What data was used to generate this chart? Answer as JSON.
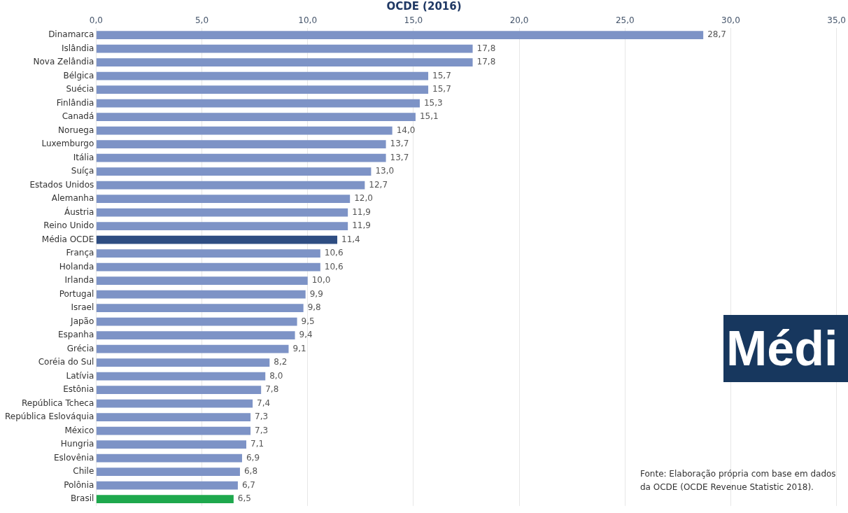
{
  "chart_data": {
    "type": "bar",
    "orientation": "horizontal",
    "title": "OCDE (2016)",
    "categories": [
      "Dinamarca",
      "Islândia",
      "Nova Zelândia",
      "Bélgica",
      "Suécia",
      "Finlândia",
      "Canadá",
      "Noruega",
      "Luxemburgo",
      "Itália",
      "Suíça",
      "Estados Unidos",
      "Alemanha",
      "Áustria",
      "Reino Unido",
      "Média OCDE",
      "França",
      "Holanda",
      "Irlanda",
      "Portugal",
      "Israel",
      "Japão",
      "Espanha",
      "Grécia",
      "Coréia do Sul",
      "Latívia",
      "Estônia",
      "República Tcheca",
      "República Eslováquia",
      "México",
      "Hungria",
      "Eslovênia",
      "Chile",
      "Polônia",
      "Brasil"
    ],
    "values": [
      28.7,
      17.8,
      17.8,
      15.7,
      15.7,
      15.3,
      15.1,
      14.0,
      13.7,
      13.7,
      13.0,
      12.7,
      12.0,
      11.9,
      11.9,
      11.4,
      10.6,
      10.6,
      10.0,
      9.9,
      9.8,
      9.5,
      9.4,
      9.1,
      8.2,
      8.0,
      7.8,
      7.4,
      7.3,
      7.3,
      7.1,
      6.9,
      6.8,
      6.7,
      6.5
    ],
    "colors": [
      "#7d93c6",
      "#7d93c6",
      "#7d93c6",
      "#7d93c6",
      "#7d93c6",
      "#7d93c6",
      "#7d93c6",
      "#7d93c6",
      "#7d93c6",
      "#7d93c6",
      "#7d93c6",
      "#7d93c6",
      "#7d93c6",
      "#7d93c6",
      "#7d93c6",
      "#2e4d82",
      "#7d93c6",
      "#7d93c6",
      "#7d93c6",
      "#7d93c6",
      "#7d93c6",
      "#7d93c6",
      "#7d93c6",
      "#7d93c6",
      "#7d93c6",
      "#7d93c6",
      "#7d93c6",
      "#7d93c6",
      "#7d93c6",
      "#7d93c6",
      "#7d93c6",
      "#7d93c6",
      "#7d93c6",
      "#7d93c6",
      "#1ea84d"
    ],
    "value_labels": [
      "28,7",
      "17,8",
      "17,8",
      "15,7",
      "15,7",
      "15,3",
      "15,1",
      "14,0",
      "13,7",
      "13,7",
      "13,0",
      "12,7",
      "12,0",
      "11,9",
      "11,9",
      "11,4",
      "10,6",
      "10,6",
      "10,0",
      "9,9",
      "9,8",
      "9,5",
      "9,4",
      "9,1",
      "8,2",
      "8,0",
      "7,8",
      "7,4",
      "7,3",
      "7,3",
      "7,1",
      "6,9",
      "6,8",
      "6,7",
      "6,5"
    ],
    "xlim": [
      0,
      35
    ],
    "xticks": [
      {
        "value": 0,
        "label": "0,0"
      },
      {
        "value": 5,
        "label": "5,0"
      },
      {
        "value": 10,
        "label": "10,0"
      },
      {
        "value": 15,
        "label": "15,0"
      },
      {
        "value": 20,
        "label": "20,0"
      },
      {
        "value": 25,
        "label": "25,0"
      },
      {
        "value": 30,
        "label": "30,0"
      },
      {
        "value": 35,
        "label": "35,0"
      }
    ],
    "grid": "x",
    "annotations": [
      "Fonte:  Elaboração própria com base em dados da OCDE (OCDE Revenue Statistic 2018).",
      "Médi"
    ]
  }
}
